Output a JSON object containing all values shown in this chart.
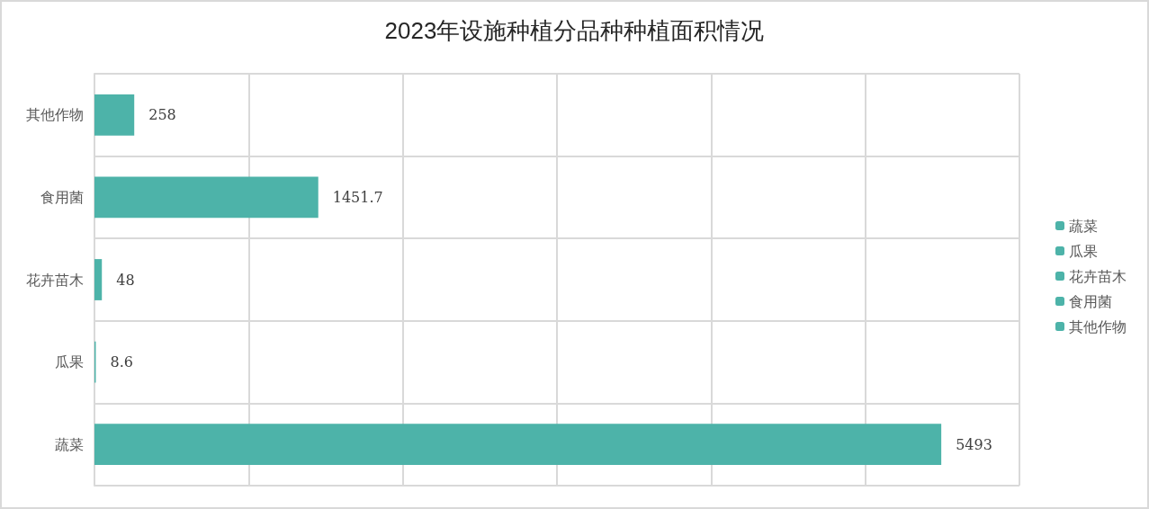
{
  "chart_data": {
    "type": "bar",
    "orientation": "horizontal",
    "stacked": true,
    "title": "2023年设施种植分品种种植面积情况",
    "categories": [
      "其他作物",
      "食用菌",
      "花卉苗木",
      "瓜果",
      "蔬菜"
    ],
    "series": [
      {
        "name": "蔬菜",
        "color": "#4db3a9",
        "values": [
          null,
          null,
          null,
          null,
          5493
        ]
      },
      {
        "name": "瓜果",
        "color": "#4db3a9",
        "values": [
          null,
          null,
          null,
          8.6,
          null
        ]
      },
      {
        "name": "花卉苗木",
        "color": "#4db3a9",
        "values": [
          null,
          null,
          48,
          null,
          null
        ]
      },
      {
        "name": "食用菌",
        "color": "#4db3a9",
        "values": [
          null,
          1451.7,
          null,
          null,
          null
        ]
      },
      {
        "name": "其他作物",
        "color": "#4db3a9",
        "values": [
          258,
          null,
          null,
          null,
          null
        ]
      }
    ],
    "xlim": [
      0,
      6000
    ],
    "xticks": [
      {
        "value": 0,
        "label": null
      },
      {
        "value": 1000,
        "label": null
      },
      {
        "value": 2000,
        "label": null
      },
      {
        "value": 3000,
        "label": null
      },
      {
        "value": 4000,
        "label": null
      },
      {
        "value": 5000,
        "label": null
      },
      {
        "value": 6000,
        "label": null
      }
    ],
    "tick_labels": "y",
    "grid": true,
    "legend": "right",
    "data_labels": true
  }
}
